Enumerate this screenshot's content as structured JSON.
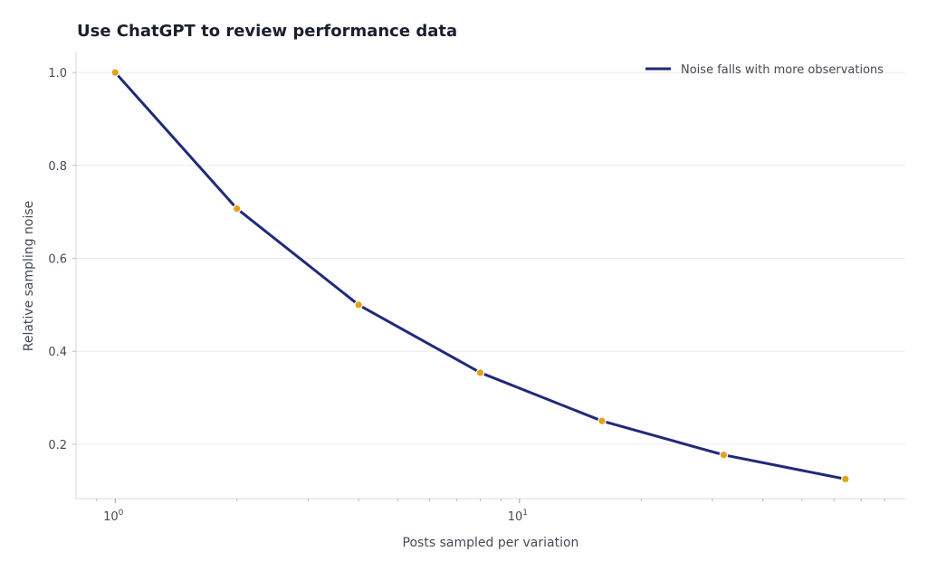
{
  "chart_data": {
    "type": "line",
    "title": "Use ChatGPT to review performance data",
    "xlabel": "Posts sampled per variation",
    "ylabel": "Relative sampling noise",
    "x_scale": "log",
    "xlim": [
      0.8,
      90
    ],
    "ylim": [
      0.083,
      1.045
    ],
    "x_ticks": [
      {
        "value": 1,
        "base": "10",
        "exp": "0"
      },
      {
        "value": 10,
        "base": "10",
        "exp": "1"
      }
    ],
    "y_ticks": [
      0.2,
      0.4,
      0.6,
      0.8,
      1.0
    ],
    "y_tick_labels": [
      "0.2",
      "0.4",
      "0.6",
      "0.8",
      "1.0"
    ],
    "grid": "horizontal",
    "legend_position": "top-right",
    "series": [
      {
        "name": "Noise falls with more observations",
        "color": "#1f2a7a",
        "marker_color": "#e3a21a",
        "x": [
          1,
          2,
          4,
          8,
          16,
          32,
          64
        ],
        "y": [
          1.0,
          0.707,
          0.5,
          0.354,
          0.25,
          0.177,
          0.125
        ]
      }
    ]
  }
}
